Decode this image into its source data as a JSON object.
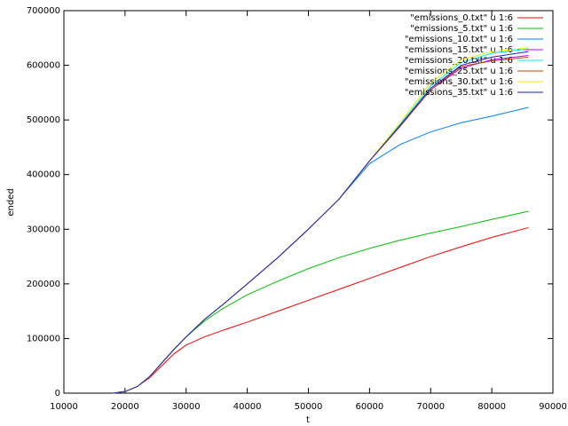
{
  "chart_data": {
    "type": "line",
    "x_label": "t",
    "y_label": "ended",
    "x": [
      18000,
      20000,
      22000,
      24000,
      26000,
      28000,
      30000,
      33000,
      36000,
      40000,
      45000,
      50000,
      55000,
      60000,
      65000,
      70000,
      75000,
      80000,
      86000
    ],
    "series": [
      {
        "name": "\"emissions_0.txt\" u 1:6",
        "color": "#ff0000",
        "values": [
          0,
          3000,
          12000,
          28000,
          50000,
          72000,
          88000,
          103000,
          115000,
          130000,
          150000,
          170000,
          190000,
          210000,
          230000,
          250000,
          268000,
          285000,
          303000
        ]
      },
      {
        "name": "\"emissions_5.txt\" u 1:6",
        "color": "#00c000",
        "values": [
          0,
          3000,
          12000,
          30000,
          55000,
          80000,
          103000,
          132000,
          155000,
          180000,
          205000,
          228000,
          248000,
          265000,
          280000,
          293000,
          305000,
          318000,
          333000
        ]
      },
      {
        "name": "\"emissions_10.txt\" u 1:6",
        "color": "#0080ff",
        "values": [
          0,
          3000,
          12000,
          30000,
          55000,
          80000,
          103000,
          135000,
          162000,
          200000,
          248000,
          300000,
          355000,
          420000,
          455000,
          478000,
          495000,
          507000,
          523000
        ]
      },
      {
        "name": "\"emissions_15.txt\" u 1:6",
        "color": "#c000ff",
        "values": [
          0,
          3000,
          12000,
          30000,
          55000,
          80000,
          103000,
          135000,
          162000,
          200000,
          248000,
          300000,
          355000,
          425000,
          490000,
          555000,
          595000,
          610000,
          618000
        ]
      },
      {
        "name": "\"emissions_20.txt\" u 1:6",
        "color": "#00eeee",
        "values": [
          0,
          3000,
          12000,
          30000,
          55000,
          80000,
          103000,
          135000,
          162000,
          200000,
          248000,
          300000,
          355000,
          425000,
          492000,
          562000,
          605000,
          622000,
          630000
        ]
      },
      {
        "name": "\"emissions_25.txt\" u 1:6",
        "color": "#c04000",
        "values": [
          0,
          3000,
          12000,
          30000,
          55000,
          80000,
          103000,
          135000,
          162000,
          200000,
          248000,
          300000,
          355000,
          425000,
          488000,
          555000,
          598000,
          608000,
          615000
        ]
      },
      {
        "name": "\"emissions_30.txt\" u 1:6",
        "color": "#eeee00",
        "values": [
          0,
          3000,
          12000,
          30000,
          55000,
          80000,
          103000,
          135000,
          162000,
          200000,
          248000,
          300000,
          355000,
          425000,
          495000,
          568000,
          610000,
          625000,
          632000
        ]
      },
      {
        "name": "\"emissions_35.txt\" u 1:6",
        "color": "#2020c0",
        "values": [
          0,
          3000,
          12000,
          30000,
          55000,
          80000,
          103000,
          135000,
          162000,
          200000,
          248000,
          300000,
          355000,
          425000,
          490000,
          558000,
          600000,
          615000,
          625000
        ]
      }
    ],
    "xlim": [
      10000,
      90000
    ],
    "xticks": [
      10000,
      20000,
      30000,
      40000,
      50000,
      60000,
      70000,
      80000,
      90000
    ],
    "ylim": [
      0,
      700000
    ],
    "yticks": [
      0,
      100000,
      200000,
      300000,
      400000,
      500000,
      600000,
      700000
    ],
    "legend": "top-right"
  }
}
